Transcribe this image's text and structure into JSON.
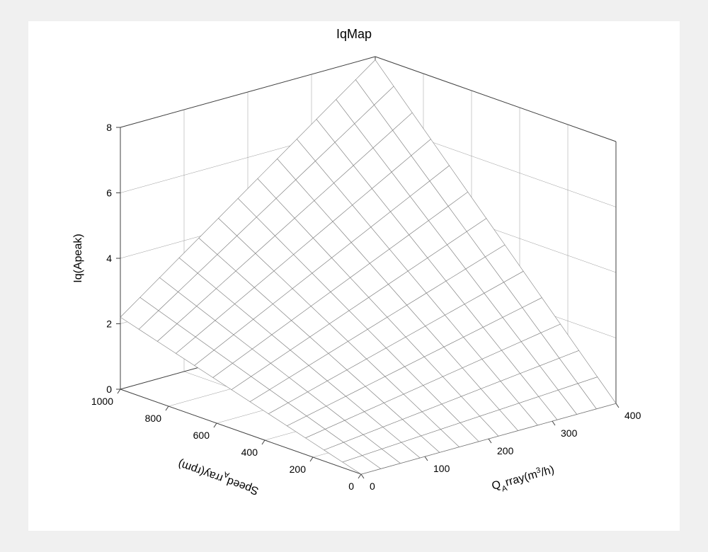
{
  "chart": {
    "type": "surface-mesh-3d",
    "title": "IqMap",
    "title_fontsize": 18,
    "background_color": "#f0f0f0",
    "plot_bgcolor": "#ffffff",
    "grid_color": "#808080",
    "axis_line_color": "#404040",
    "mesh_line_color": "#808080",
    "mesh_line_width": 0.6,
    "mesh_face_color": "none",
    "x_axis": {
      "label": "Speed_Array(rpm)",
      "label_sub_char": "A",
      "min": 0,
      "max": 1000,
      "ticks": [
        0,
        200,
        400,
        600,
        800,
        1000
      ],
      "label_fontsize": 16,
      "tick_fontsize": 14
    },
    "y_axis": {
      "label": "Q_Array(m3/h)",
      "label_sub_char": "A",
      "label_sup_char": "3",
      "min": 0,
      "max": 400,
      "ticks": [
        0,
        100,
        200,
        300,
        400
      ],
      "label_fontsize": 16,
      "tick_fontsize": 14
    },
    "z_axis": {
      "label": "Iq(Apeak)",
      "min": 0,
      "max": 8,
      "ticks": [
        0,
        2,
        4,
        6,
        8
      ],
      "label_fontsize": 16,
      "tick_fontsize": 14
    },
    "surface": {
      "x_lines_count": 14,
      "y_lines_count": 14,
      "z_formula": "z = a + b*x + c*y  (planar)",
      "z_at_x0_y0": 0.0,
      "z_at_xmax_y0": 2.2,
      "z_at_x0_ymax": 0.0,
      "z_at_xmax_ymax": 7.9
    },
    "view": {
      "azimuth_deg": -37.5,
      "elevation_deg": 30
    }
  }
}
